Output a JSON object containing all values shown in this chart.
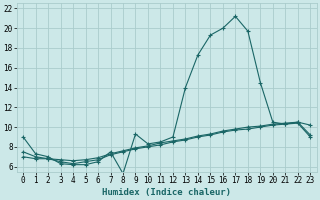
{
  "xlabel": "Humidex (Indice chaleur)",
  "background_color": "#cce8e8",
  "grid_color": "#aacccc",
  "line_color": "#1a6666",
  "x_values": [
    0,
    1,
    2,
    3,
    4,
    5,
    6,
    7,
    8,
    9,
    10,
    11,
    12,
    13,
    14,
    15,
    16,
    17,
    18,
    19,
    20,
    21,
    22,
    23
  ],
  "line1_y": [
    9.0,
    7.3,
    7.0,
    6.3,
    6.2,
    6.2,
    6.5,
    7.5,
    5.3,
    9.3,
    8.3,
    8.5,
    9.0,
    14.0,
    17.3,
    19.3,
    20.0,
    21.2,
    19.7,
    14.5,
    10.5,
    10.3,
    10.5,
    10.2
  ],
  "line2_y": [
    7.0,
    6.8,
    6.8,
    6.5,
    6.3,
    6.5,
    6.7,
    7.2,
    7.5,
    7.8,
    8.0,
    8.2,
    8.5,
    8.7,
    9.0,
    9.2,
    9.5,
    9.7,
    9.8,
    10.0,
    10.2,
    10.3,
    10.4,
    9.0
  ],
  "line3_y": [
    7.5,
    7.0,
    6.8,
    6.7,
    6.6,
    6.7,
    6.9,
    7.3,
    7.6,
    7.9,
    8.1,
    8.4,
    8.6,
    8.8,
    9.1,
    9.3,
    9.6,
    9.8,
    10.0,
    10.1,
    10.3,
    10.4,
    10.5,
    9.2
  ],
  "ylim": [
    5.5,
    22.5
  ],
  "xlim": [
    -0.5,
    23.5
  ],
  "yticks": [
    6,
    8,
    10,
    12,
    14,
    16,
    18,
    20,
    22
  ],
  "xticks": [
    0,
    1,
    2,
    3,
    4,
    5,
    6,
    7,
    8,
    9,
    10,
    11,
    12,
    13,
    14,
    15,
    16,
    17,
    18,
    19,
    20,
    21,
    22,
    23
  ]
}
